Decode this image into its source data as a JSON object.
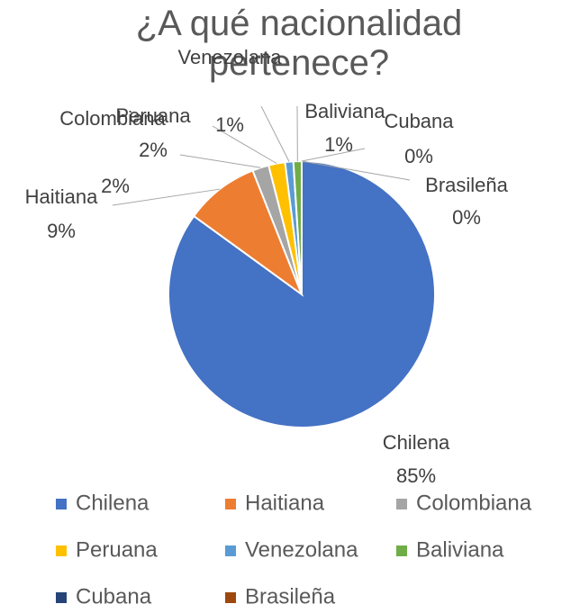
{
  "chart_data": {
    "type": "pie",
    "title": "¿A qué nacionalidad pertenece?",
    "categories": [
      "Chilena",
      "Haitiana",
      "Colombiana",
      "Peruana",
      "Venezolana",
      "Baliviana",
      "Cubana",
      "Brasileña"
    ],
    "values": [
      85,
      9,
      2,
      2,
      1,
      1,
      0,
      0
    ],
    "value_labels": [
      "85%",
      "9%",
      "2%",
      "2%",
      "1%",
      "1%",
      "0%",
      "0%"
    ],
    "colors": [
      "#4472c4",
      "#ed7d31",
      "#a5a5a5",
      "#ffc000",
      "#5b9bd5",
      "#70ad47",
      "#264478",
      "#9e480e"
    ],
    "legend": "bottom"
  }
}
